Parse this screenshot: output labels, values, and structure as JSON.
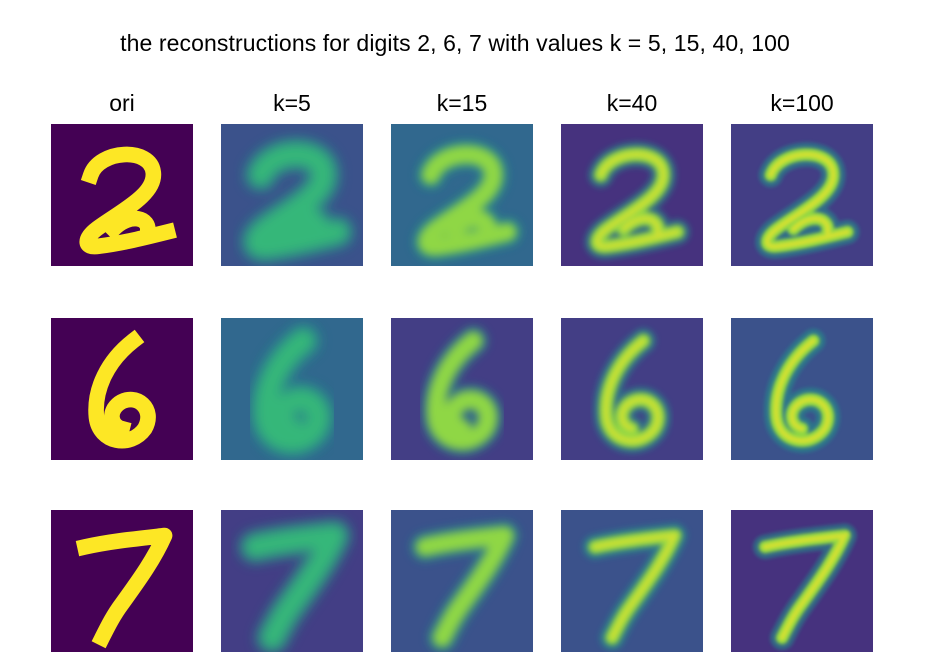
{
  "figure": {
    "title": "the reconstructions for digits 2, 6, 7 with values k = 5, 15, 40, 100",
    "columns": [
      {
        "label": "ori"
      },
      {
        "label": "k=5"
      },
      {
        "label": "k=15"
      },
      {
        "label": "k=40"
      },
      {
        "label": "k=100"
      }
    ],
    "rows": [
      {
        "digit": "2"
      },
      {
        "digit": "6"
      },
      {
        "digit": "7"
      }
    ],
    "colormap": "viridis",
    "colors": {
      "ori_background": "#440154",
      "ori_stroke": "#fde725",
      "recon_background": [
        "#46327e",
        "#433e85",
        "#3b528b",
        "#31688e"
      ],
      "recon_stroke": [
        "#21918c",
        "#35b779",
        "#8fd744",
        "#fde725"
      ]
    }
  }
}
